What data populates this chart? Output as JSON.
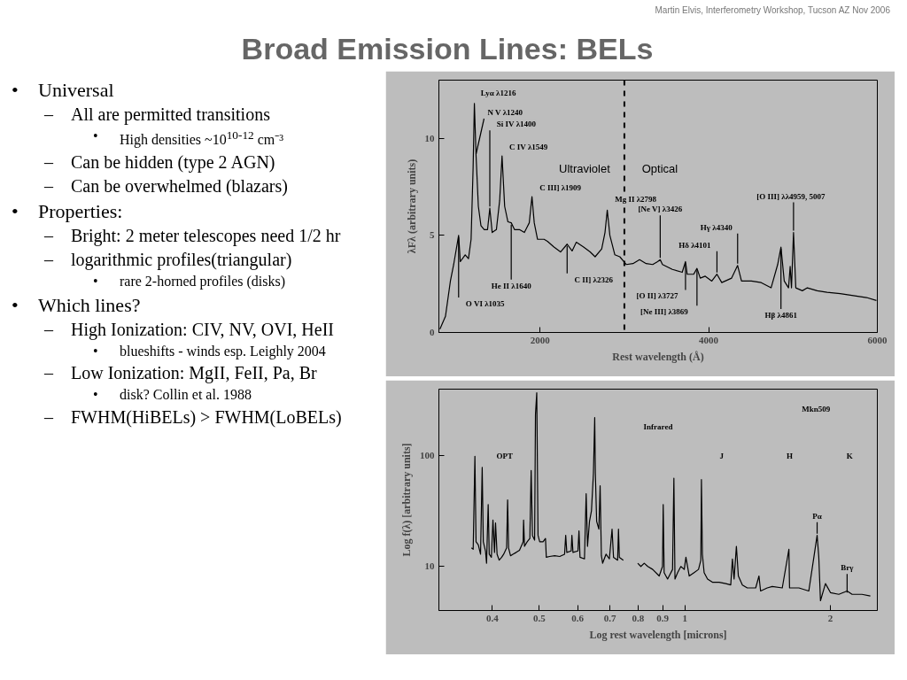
{
  "chart_data": [
    {
      "type": "other",
      "title": "Broad Emission Lines: BELs",
      "annotations": [
        "Martin Elvis, Interferometry Workshop, Tucson AZ Nov 2006",
        "• Universal",
        "– All are permitted transitions",
        "• High densities ~10$^{10-12}$ cm⁻³",
        "– Can be hidden (type 2 AGN)",
        "– Can be overwhelmed (blazars)",
        "• Properties:",
        "– Bright: 2 meter telescopes need 1/2 hr",
        "– logarithmic profiles(triangular)",
        "• rare 2-horned profiles (disks)",
        "• Which lines?",
        "– High Ionization: CIV, NV, OVI, HeII",
        "• blueshifts - winds esp. Leighly 2004",
        "– Low Ionization: MgII, FeII, Pa, Br",
        "• disk? Collin et al. 1988",
        "– FWHM(HiBELs) > FWHM(LoBELs)"
      ]
    },
    {
      "type": "line",
      "xlabel": "Rest wavelength (Å)",
      "ylabel": "λFλ (arbitrary units)",
      "xlim": [
        800,
        6000
      ],
      "ylim": [
        0,
        13
      ],
      "xticks": [
        2000,
        4000,
        6000
      ],
      "yticks": [
        0,
        5,
        10
      ],
      "grid": false,
      "series": [
        {
          "color": "#000000",
          "x": [
            812,
            878,
            937,
            975,
            1034,
            1054,
            1112,
            1151,
            1182,
            1206,
            1221,
            1241,
            1268,
            1299,
            1338,
            1377,
            1404,
            1432,
            1482,
            1521,
            1549,
            1580,
            1619,
            1658,
            1697,
            1755,
            1814,
            1872,
            1904,
            1931,
            1970,
            2048,
            2087,
            2165,
            2243,
            2321,
            2380,
            2430,
            2516,
            2594,
            2653,
            2731,
            2770,
            2797,
            2828,
            2887,
            2946,
            3024,
            3102,
            3180,
            3258,
            3336,
            3394,
            3425,
            3452,
            3569,
            3686,
            3725,
            3745,
            3822,
            3861,
            3900,
            3959,
            4037,
            4098,
            4155,
            4272,
            4343,
            4389,
            4506,
            4623,
            4740,
            4818,
            4857,
            4896,
            4947,
            4966,
            4982,
            5006,
            5033,
            5111,
            5170,
            5287,
            5404,
            5560,
            5716,
            5872,
            5989
          ],
          "values": [
            0.17,
            0.83,
            2.66,
            3.49,
            5.0,
            3.65,
            4.0,
            3.8,
            4.8,
            8.5,
            11.8,
            9.1,
            6.5,
            5.5,
            5.3,
            5.3,
            6.4,
            5.15,
            5.3,
            6.8,
            9.1,
            6.5,
            5.7,
            5.65,
            5.3,
            5.3,
            5.15,
            5.65,
            7.0,
            5.65,
            4.8,
            4.8,
            4.7,
            4.4,
            4.15,
            4.55,
            4.2,
            4.65,
            4.4,
            4.15,
            3.9,
            4.3,
            5.15,
            6.3,
            5.0,
            4.0,
            3.9,
            3.5,
            3.55,
            3.75,
            3.55,
            3.5,
            3.65,
            3.75,
            3.5,
            3.25,
            3.1,
            3.65,
            3.0,
            3.0,
            3.3,
            2.8,
            2.9,
            2.65,
            3.0,
            2.57,
            2.8,
            3.45,
            2.65,
            2.65,
            2.57,
            2.3,
            3.5,
            4.4,
            2.65,
            2.3,
            3.4,
            2.3,
            5.15,
            2.3,
            2.15,
            2.3,
            2.15,
            2.07,
            2.0,
            1.9,
            1.8,
            1.65
          ]
        }
      ],
      "ref_lines": [
        {
          "axis": "x",
          "value": 3000,
          "color": "#000000",
          "line_style": "dashed"
        }
      ],
      "annotations": [
        {
          "text": "Lyα λ1216",
          "x": 1221,
          "y": 11.8
        },
        {
          "text": "N V λ1240",
          "x": 1241,
          "y": 9.1
        },
        {
          "text": "Si IV λ1400",
          "x": 1404,
          "y": 6.4
        },
        {
          "text": "C IV λ1549",
          "x": 1549,
          "y": 9.1
        },
        {
          "text": "C III] λ1909",
          "x": 1904,
          "y": 7.0
        },
        {
          "text": "Mg II λ2798",
          "x": 2797,
          "y": 6.3
        },
        {
          "text": "[Ne V] λ3426",
          "x": 3425,
          "y": 3.75
        },
        {
          "text": "Hγ λ4340",
          "x": 4343,
          "y": 3.45
        },
        {
          "text": "Hδ λ4101",
          "x": 4098,
          "y": 3.0
        },
        {
          "text": "[O III] λλ4959, 5007",
          "x": 5006,
          "y": 5.15
        },
        {
          "text": "O VI λ1035",
          "x": 1034,
          "y": 5.0
        },
        {
          "text": "He II λ1640",
          "x": 1658,
          "y": 5.65
        },
        {
          "text": "C II] λ2326",
          "x": 2321,
          "y": 4.55
        },
        {
          "text": "[O II] λ3727",
          "x": 3725,
          "y": 3.65
        },
        {
          "text": "[Ne III] λ3869",
          "x": 3861,
          "y": 3.3
        },
        {
          "text": "Hβ λ4861",
          "x": 4857,
          "y": 4.4
        },
        "Ultraviolet",
        "Optical"
      ]
    },
    {
      "type": "line",
      "xlabel": "Log rest wavelength [microns]",
      "ylabel": "Log f(λ) [arbitrary units]",
      "log": "xy",
      "xlim": [
        0.31,
        2.5
      ],
      "ylim": [
        4,
        400
      ],
      "xticks": [
        0.4,
        0.5,
        0.6,
        0.7,
        0.8,
        0.9,
        1,
        2
      ],
      "yticks": [
        10,
        100
      ],
      "grid": false,
      "series": [
        {
          "color": "#000000",
          "x": [
            0.362,
            0.365,
            0.368,
            0.37,
            0.374,
            0.378,
            0.381,
            0.383,
            0.387,
            0.389,
            0.392,
            0.394,
            0.398,
            0.401,
            0.404,
            0.406,
            0.409,
            0.413,
            0.418,
            0.422,
            0.428,
            0.43,
            0.432,
            0.436,
            0.441,
            0.448,
            0.455,
            0.463,
            0.464,
            0.466,
            0.472,
            0.478,
            0.481,
            0.484,
            0.489,
            0.491,
            0.494,
            0.497,
            0.501,
            0.509,
            0.515,
            0.517,
            0.525,
            0.538,
            0.551,
            0.564,
            0.567,
            0.57,
            0.582,
            0.584,
            0.587,
            0.601,
            0.604,
            0.607,
            0.62,
            0.625,
            0.629,
            0.635,
            0.641,
            0.647,
            0.651,
            0.653,
            0.657,
            0.664,
            0.668,
            0.672,
            0.676,
            0.687,
            0.698,
            0.707,
            0.712,
            0.726,
            0.729,
            0.732,
            0.746,
            0.77,
            0.799,
            0.811,
            0.824,
            0.838,
            0.858,
            0.885,
            0.899,
            0.902,
            0.906,
            0.921,
            0.943,
            0.949,
            0.954,
            0.966,
            0.981,
            0.997,
            1.005,
            1.021,
            1.045,
            1.067,
            1.079,
            1.082,
            1.087,
            1.096,
            1.114,
            1.14,
            1.177,
            1.215,
            1.244,
            1.254,
            1.264,
            1.278,
            1.29,
            1.315,
            1.346,
            1.401,
            1.423,
            1.434,
            1.48,
            1.516,
            1.59,
            1.641,
            1.646,
            1.721,
            1.804,
            1.848,
            1.877,
            1.892,
            1.907,
            1.953,
            2.0,
            2.081,
            2.165,
            2.217,
            2.324,
            2.418
          ],
          "values": [
            14.7,
            14.3,
            99,
            16.7,
            15.7,
            12.9,
            78.7,
            16.7,
            13.8,
            10.7,
            36.3,
            12.9,
            12.1,
            26.3,
            13.4,
            24.7,
            12.9,
            11.4,
            12.1,
            12.9,
            14.7,
            40,
            14.7,
            12.5,
            12.9,
            13.4,
            14.0,
            16.7,
            26.3,
            15.2,
            16.7,
            17.9,
            73.8,
            19.1,
            17.3,
            236,
            371,
            19.1,
            16.7,
            16.7,
            17.9,
            12.1,
            12.3,
            12.5,
            12.3,
            12.9,
            19.1,
            13.4,
            13.8,
            19.1,
            13.4,
            13.8,
            21,
            12.1,
            11.7,
            45.5,
            15.2,
            25.5,
            31.9,
            69.2,
            221,
            69.2,
            25.5,
            21.7,
            53.5,
            12.5,
            10.7,
            12.9,
            11.7,
            21.7,
            12.1,
            11.4,
            21.7,
            12.1,
            11.4,
            null,
            10.7,
            10,
            10.7,
            10,
            9.4,
            8.2,
            10,
            36.3,
            8.8,
            7.7,
            9.4,
            62.8,
            7.7,
            8.8,
            10,
            9.4,
            12.1,
            8.2,
            8.8,
            9.4,
            11.4,
            60.9,
            12.9,
            8.8,
            7.7,
            7.2,
            7.2,
            7.0,
            6.8,
            11.7,
            7.7,
            15.2,
            8.2,
            6.8,
            6.4,
            6.4,
            8.2,
            6.0,
            6.4,
            6.6,
            6.4,
            14.3,
            6.4,
            6.4,
            6.0,
            12.1,
            19.1,
            12.1,
            4.9,
            7.0,
            5.8,
            5.6,
            6.0,
            5.6,
            5.6,
            5.4
          ]
        }
      ],
      "annotations": [
        "OPT",
        "J",
        "H",
        "K",
        "Mkn509",
        "Infrared",
        {
          "text": "Pα",
          "x": 1.877,
          "y": 19.1
        },
        {
          "text": "Brγ",
          "x": 2.165,
          "y": 5.6
        }
      ]
    }
  ]
}
